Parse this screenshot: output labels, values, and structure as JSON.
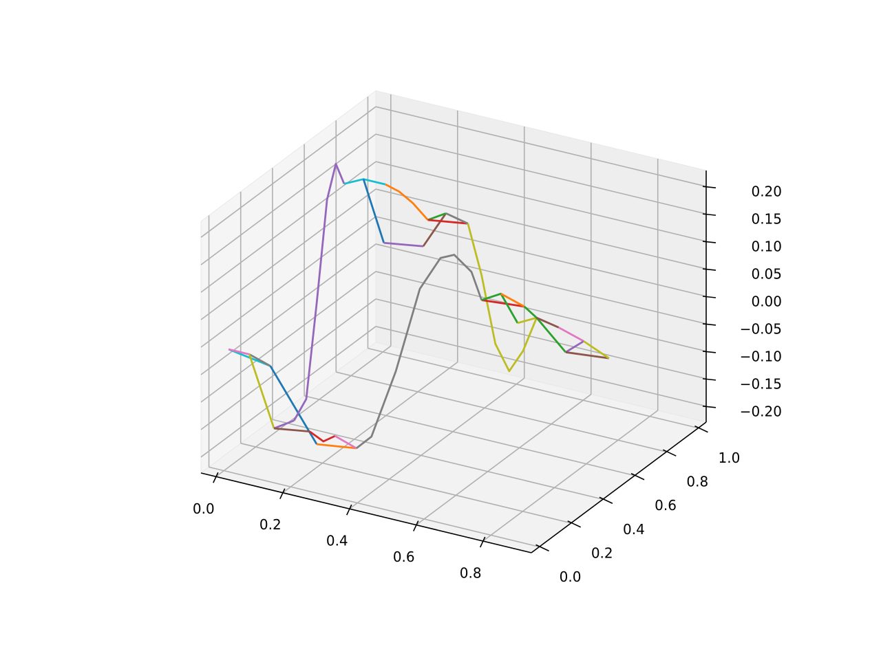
{
  "chart_data": {
    "type": "line3d",
    "xlim": [
      -0.045,
      0.945
    ],
    "ylim": [
      -0.05,
      1.05
    ],
    "zlim": [
      -0.229,
      0.229
    ],
    "xticks": [
      {
        "value": 0,
        "label": "0.0"
      },
      0.2,
      0.4,
      0.6,
      0.8
    ],
    "yticks": [
      {
        "value": 0,
        "label": "0.0"
      },
      0.2,
      0.4,
      0.6,
      0.8,
      {
        "value": 1,
        "label": "1.0"
      }
    ],
    "zticks": [
      {
        "value": -0.2,
        "label": "−0.20"
      },
      {
        "value": -0.15,
        "label": "−0.15"
      },
      {
        "value": -0.1,
        "label": "−0.10"
      },
      {
        "value": -0.05,
        "label": "−0.05"
      },
      {
        "value": 0,
        "label": "0.00"
      },
      {
        "value": 0.05,
        "label": "0.05"
      },
      {
        "value": 0.1,
        "label": "0.10"
      },
      {
        "value": 0.15,
        "label": "0.15"
      },
      {
        "value": 0.2,
        "label": "0.20"
      }
    ],
    "grid": true,
    "series": [
      {
        "color": "#17becf",
        "x": [
          0.014,
          0.139
        ],
        "y": [
          0,
          0
        ],
        "z": [
          -0.006,
          -0.018
        ]
      },
      {
        "color": "#e377c2",
        "x": [
          0.014,
          0.076
        ],
        "y": [
          0,
          0
        ],
        "z": [
          -0.006,
          -0.006
        ]
      },
      {
        "color": "#7f7f7f",
        "x": [
          0.076,
          0.139
        ],
        "y": [
          0,
          0
        ],
        "z": [
          -0.006,
          -0.018
        ]
      },
      {
        "color": "#bcbd22",
        "x": [
          0.076,
          0.15
        ],
        "y": [
          0,
          0
        ],
        "z": [
          -0.006,
          -0.13
        ]
      },
      {
        "color": "#1f77b4",
        "x": [
          0.139,
          0.278
        ],
        "y": [
          0,
          0
        ],
        "z": [
          -0.018,
          -0.14
        ]
      },
      {
        "color": "#9467bd",
        "x": [
          0.15,
          0.21
        ],
        "y": [
          0,
          0
        ],
        "z": [
          -0.13,
          -0.107
        ]
      },
      {
        "color": "#8c564b",
        "x": [
          0.15,
          0.257
        ],
        "y": [
          0,
          0
        ],
        "z": [
          -0.13,
          -0.12
        ]
      },
      {
        "color": "#d62728",
        "x": [
          0.257,
          0.298,
          0.333
        ],
        "y": [
          0,
          0,
          0
        ],
        "z": [
          -0.12,
          -0.132,
          -0.117
        ]
      },
      {
        "color": "#ff7f0e",
        "x": [
          0.278,
          0.397
        ],
        "y": [
          0,
          0
        ],
        "z": [
          -0.14,
          -0.13
        ]
      },
      {
        "color": "#e377c2",
        "x": [
          0.333,
          0.397
        ],
        "y": [
          0,
          0
        ],
        "z": [
          -0.117,
          -0.13
        ]
      },
      {
        "color": "#9467bd",
        "x": [
          0.21,
          0.199,
          0.159,
          0.128,
          0.121,
          0.122
        ],
        "y": [
          0,
          0.1,
          0.25,
          0.38,
          0.45,
          0.5
        ],
        "z": [
          -0.107,
          -0.091,
          0.046,
          0.201,
          0.25,
          0.203
        ]
      },
      {
        "color": "#7f7f7f",
        "x": [
          0.397,
          0.404,
          0.396,
          0.387,
          0.387,
          0.39,
          0.394,
          0.391
        ],
        "y": [
          0,
          0.08,
          0.25,
          0.42,
          0.55,
          0.63,
          0.73,
          0.8
        ],
        "z": [
          -0.13,
          -0.125,
          -0.044,
          0.068,
          0.096,
          0.085,
          0.033,
          -0.034
        ]
      },
      {
        "color": "#17becf",
        "x": [
          0.122,
          0.18,
          0.246
        ],
        "y": [
          0.5,
          0.5,
          0.5
        ],
        "z": [
          0.203,
          0.22,
          0.22
        ]
      },
      {
        "color": "#1f77b4",
        "x": [
          0.18,
          0.241
        ],
        "y": [
          0.5,
          0.5
        ],
        "z": [
          0.22,
          0.113
        ]
      },
      {
        "color": "#9467bd",
        "x": [
          0.241,
          0.359
        ],
        "y": [
          0.5,
          0.5
        ],
        "z": [
          0.113,
          0.124
        ]
      },
      {
        "color": "#8c564b",
        "x": [
          0.359,
          0.427
        ],
        "y": [
          0.5,
          0.5
        ],
        "z": [
          0.124,
          0.194
        ]
      },
      {
        "color": "#ff7f0e",
        "x": [
          0.246,
          0.287,
          0.328,
          0.373
        ],
        "y": [
          0.5,
          0.5,
          0.5,
          0.5
        ],
        "z": [
          0.22,
          0.213,
          0.198,
          0.174
        ]
      },
      {
        "color": "#2ca02c",
        "x": [
          0.373,
          0.427
        ],
        "y": [
          0.5,
          0.5
        ],
        "z": [
          0.174,
          0.194
        ]
      },
      {
        "color": "#d62728",
        "x": [
          0.373,
          0.493
        ],
        "y": [
          0.5,
          0.5
        ],
        "z": [
          0.174,
          0.185
        ]
      },
      {
        "color": "#7f7f7f",
        "x": [
          0.427,
          0.493
        ],
        "y": [
          0.5,
          0.5
        ],
        "z": [
          0.194,
          0.185
        ]
      },
      {
        "color": "#bcbd22",
        "x": [
          0.493,
          0.51,
          0.518,
          0.531,
          0.544,
          0.556
        ],
        "y": [
          0.5,
          0.55,
          0.62,
          0.68,
          0.74,
          0.8
        ],
        "z": [
          0.185,
          0.083,
          -0.056,
          -0.117,
          -0.091,
          -0.042
        ]
      },
      {
        "color": "#d62728",
        "x": [
          0.391,
          0.519
        ],
        "y": [
          0.8,
          0.8
        ],
        "z": [
          -0.034,
          -0.027
        ]
      },
      {
        "color": "#2ca02c",
        "x": [
          0.391,
          0.449,
          0.499
        ],
        "y": [
          0.8,
          0.8,
          0.8
        ],
        "z": [
          -0.034,
          -0.014,
          -0.06
        ]
      },
      {
        "color": "#ff7f0e",
        "x": [
          0.449,
          0.519
        ],
        "y": [
          0.8,
          0.8
        ],
        "z": [
          -0.014,
          -0.027
        ]
      },
      {
        "color": "#bcbd22",
        "x": [
          0.499,
          0.556
        ],
        "y": [
          0.8,
          0.8
        ],
        "z": [
          -0.06,
          -0.042
        ]
      },
      {
        "color": "#2ca02c",
        "x": [
          0.519,
          0.556,
          0.643
        ],
        "y": [
          0.8,
          0.8,
          0.8
        ],
        "z": [
          -0.027,
          -0.042,
          -0.092
        ]
      },
      {
        "color": "#8c564b",
        "x": [
          0.556,
          0.622
        ],
        "y": [
          0.8,
          0.8
        ],
        "z": [
          -0.042,
          -0.05
        ]
      },
      {
        "color": "#e377c2",
        "x": [
          0.622,
          0.697
        ],
        "y": [
          0.8,
          0.8
        ],
        "z": [
          -0.05,
          -0.064
        ]
      },
      {
        "color": "#9467bd",
        "x": [
          0.643,
          0.697
        ],
        "y": [
          0.8,
          0.8
        ],
        "z": [
          -0.092,
          -0.064
        ]
      },
      {
        "color": "#8c564b",
        "x": [
          0.643,
          0.773
        ],
        "y": [
          0.8,
          0.8
        ],
        "z": [
          -0.092,
          -0.084
        ]
      },
      {
        "color": "#bcbd22",
        "x": [
          0.697,
          0.773
        ],
        "y": [
          0.8,
          0.8
        ],
        "z": [
          -0.064,
          -0.084
        ]
      }
    ]
  }
}
